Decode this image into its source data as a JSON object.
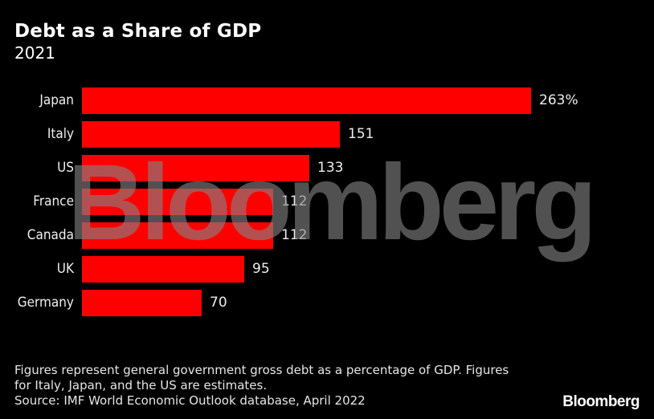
{
  "header": {
    "title": "Debt as a Share of GDP",
    "subtitle": "2021"
  },
  "chart_data": {
    "type": "bar",
    "orientation": "horizontal",
    "title": "Debt as a Share of GDP",
    "subtitle": "2021",
    "categories": [
      "Japan",
      "Italy",
      "US",
      "France",
      "Canada",
      "UK",
      "Germany"
    ],
    "values": [
      263,
      151,
      133,
      112,
      112,
      95,
      70
    ],
    "value_labels": [
      "263%",
      "151",
      "133",
      "112",
      "112",
      "95",
      "70"
    ],
    "unit": "% of GDP",
    "xlabel": "",
    "ylabel": "",
    "xlim": [
      0,
      263
    ],
    "grid": false,
    "legend": null,
    "bar_color": "#ff0000"
  },
  "watermark": "Bloomberg",
  "footer": {
    "note_line1": "Figures represent general government gross debt as a percentage of GDP. Figures",
    "note_line2": "for Italy, Japan, and the US are estimates.",
    "source": "Source: IMF World Economic Outlook database, April 2022",
    "brand": "Bloomberg"
  },
  "colors": {
    "background": "#000000",
    "bar": "#ff0000",
    "text": "#ffffff"
  }
}
